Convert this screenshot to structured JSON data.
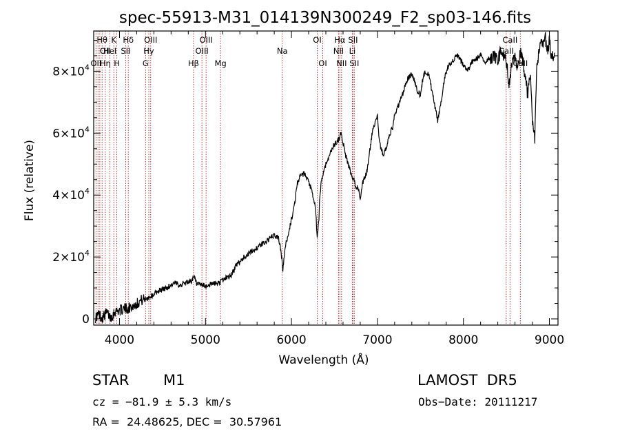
{
  "chart_data": {
    "type": "line",
    "title": "spec-55913-M31_014139N300249_F2_sp03-146.fits",
    "xlabel": "Wavelength (Å)",
    "ylabel": "Flux (relative)",
    "xlim": [
      3700,
      9100
    ],
    "ylim": [
      -2000,
      93000
    ],
    "xticks": [
      4000,
      5000,
      6000,
      7000,
      8000,
      9000
    ],
    "yticks": [
      {
        "value": 0,
        "base": "0",
        "exp": ""
      },
      {
        "value": 20000,
        "base": "2×10",
        "exp": "4"
      },
      {
        "value": 40000,
        "base": "4×10",
        "exp": "4"
      },
      {
        "value": 60000,
        "base": "6×10",
        "exp": "4"
      },
      {
        "value": 80000,
        "base": "8×10",
        "exp": "4"
      }
    ],
    "line_color": "#000000",
    "marker_color": "#b22222",
    "series": [
      {
        "x": [
          3720,
          3760,
          3800,
          3850,
          3900,
          3950,
          4000,
          4050,
          4100,
          4150,
          4200,
          4250,
          4300,
          4350,
          4400,
          4450,
          4500,
          4550,
          4600,
          4650,
          4700,
          4750,
          4800,
          4850,
          4870,
          4900,
          4950,
          5000,
          5050,
          5100,
          5150,
          5200,
          5250,
          5300,
          5350,
          5400,
          5450,
          5500,
          5550,
          5600,
          5650,
          5700,
          5750,
          5800,
          5850,
          5880,
          5900,
          5920,
          5950,
          6000,
          6030,
          6050,
          6070,
          6100,
          6150,
          6200,
          6230,
          6260,
          6280,
          6300,
          6320,
          6330,
          6350,
          6380,
          6400,
          6430,
          6460,
          6490,
          6520,
          6550,
          6570,
          6600,
          6630,
          6650,
          6680,
          6700,
          6720,
          6750,
          6780,
          6800,
          6830,
          6860,
          6880,
          6900,
          6920,
          6950,
          6980,
          7000,
          7020,
          7040,
          7070,
          7100,
          7130,
          7150,
          7180,
          7200,
          7230,
          7260,
          7280,
          7300,
          7330,
          7360,
          7400,
          7430,
          7460,
          7500,
          7530,
          7560,
          7600,
          7630,
          7660,
          7700,
          7720,
          7750,
          7770,
          7800,
          7830,
          7860,
          7900,
          7930,
          7960,
          8000,
          8050,
          8100,
          8150,
          8200,
          8250,
          8300,
          8350,
          8400,
          8430,
          8470,
          8500,
          8530,
          8560,
          8600,
          8630,
          8660,
          8690,
          8720,
          8750,
          8780,
          8800,
          8830,
          8850,
          8880,
          8900,
          8920,
          8950,
          8970,
          9000,
          9030,
          9060
        ],
        "y": [
          500,
          1500,
          300,
          2000,
          500,
          2500,
          2800,
          3200,
          3500,
          4000,
          5000,
          6000,
          6500,
          7000,
          8000,
          9000,
          9500,
          10000,
          11000,
          11500,
          11000,
          11500,
          12000,
          12500,
          13500,
          11000,
          11000,
          10500,
          11000,
          11500,
          11500,
          12500,
          13500,
          14000,
          17000,
          18500,
          20000,
          21000,
          22000,
          23000,
          24000,
          25000,
          26000,
          27000,
          26000,
          22000,
          15000,
          22000,
          26000,
          32000,
          36000,
          40000,
          44000,
          46000,
          47000,
          44000,
          42000,
          38000,
          36000,
          26000,
          32000,
          40000,
          45000,
          48000,
          50000,
          52000,
          54000,
          56000,
          57000,
          58000,
          60000,
          57000,
          53000,
          51000,
          48000,
          46000,
          45000,
          43000,
          42000,
          38000,
          44000,
          46000,
          48000,
          52000,
          56000,
          62000,
          64000,
          66000,
          58000,
          55000,
          53000,
          55000,
          58000,
          60000,
          62000,
          66000,
          68000,
          70000,
          72000,
          73000,
          76000,
          78000,
          79000,
          77000,
          74000,
          72000,
          78000,
          80000,
          79000,
          74000,
          70000,
          64000,
          67000,
          72000,
          76000,
          80000,
          82000,
          83000,
          84000,
          85000,
          84000,
          82000,
          80000,
          83000,
          84000,
          85000,
          83000,
          84000,
          85000,
          84000,
          86000,
          85000,
          83000,
          76000,
          82000,
          84000,
          80000,
          86000,
          84000,
          78000,
          72000,
          80000,
          64000,
          58000,
          80000,
          86000,
          90000,
          88000,
          92000,
          86000,
          90000,
          84000,
          86000
        ]
      }
    ],
    "lines": [
      {
        "x": 3727,
        "labels": [
          {
            "row": 3,
            "text": "OII"
          }
        ]
      },
      {
        "x": 3750,
        "labels": []
      },
      {
        "x": 3771,
        "labels": []
      },
      {
        "x": 3798,
        "labels": [
          {
            "row": 1,
            "text": "Hθ"
          }
        ]
      },
      {
        "x": 3835,
        "labels": [
          {
            "row": 2,
            "text": "OII"
          },
          {
            "row": 3,
            "text": "Hη"
          }
        ]
      },
      {
        "x": 3889,
        "labels": [
          {
            "row": 2,
            "text": "HeI"
          }
        ]
      },
      {
        "x": 3934,
        "labels": [
          {
            "row": 1,
            "text": "K"
          }
        ]
      },
      {
        "x": 3969,
        "labels": [
          {
            "row": 3,
            "text": "H"
          }
        ]
      },
      {
        "x": 4072,
        "labels": [
          {
            "row": 2,
            "text": "SII"
          }
        ]
      },
      {
        "x": 4102,
        "labels": [
          {
            "row": 1,
            "text": "Hδ"
          }
        ]
      },
      {
        "x": 4304,
        "labels": [
          {
            "row": 3,
            "text": "G"
          }
        ]
      },
      {
        "x": 4341,
        "labels": [
          {
            "row": 2,
            "text": "Hγ"
          }
        ]
      },
      {
        "x": 4363,
        "labels": [
          {
            "row": 1,
            "text": "OIII"
          }
        ]
      },
      {
        "x": 4861,
        "labels": [
          {
            "row": 3,
            "text": "Hβ"
          }
        ]
      },
      {
        "x": 4959,
        "labels": [
          {
            "row": 2,
            "text": "OIII"
          }
        ]
      },
      {
        "x": 5007,
        "labels": [
          {
            "row": 1,
            "text": "OIII"
          }
        ]
      },
      {
        "x": 5175,
        "labels": [
          {
            "row": 3,
            "text": "Mg"
          }
        ]
      },
      {
        "x": 5893,
        "labels": [
          {
            "row": 2,
            "text": "Na"
          }
        ]
      },
      {
        "x": 6300,
        "labels": [
          {
            "row": 1,
            "text": "OI"
          }
        ]
      },
      {
        "x": 6364,
        "labels": [
          {
            "row": 3,
            "text": "OI"
          }
        ]
      },
      {
        "x": 6548,
        "labels": [
          {
            "row": 2,
            "text": "NII"
          }
        ]
      },
      {
        "x": 6563,
        "labels": [
          {
            "row": 1,
            "text": "Hα"
          }
        ]
      },
      {
        "x": 6583,
        "labels": [
          {
            "row": 3,
            "text": "NII"
          }
        ]
      },
      {
        "x": 6708,
        "labels": [
          {
            "row": 2,
            "text": "Li"
          }
        ]
      },
      {
        "x": 6716,
        "labels": [
          {
            "row": 1,
            "text": "SII"
          }
        ]
      },
      {
        "x": 6731,
        "labels": [
          {
            "row": 3,
            "text": "SII"
          }
        ]
      },
      {
        "x": 8498,
        "labels": [
          {
            "row": 2,
            "text": "CaII"
          }
        ]
      },
      {
        "x": 8542,
        "labels": [
          {
            "row": 1,
            "text": "CaII"
          }
        ]
      },
      {
        "x": 8662,
        "labels": [
          {
            "row": 3,
            "text": "CaII"
          }
        ]
      }
    ]
  },
  "info": {
    "class": "STAR",
    "subclass": "M1",
    "cz": "cz = −81.9 ± 5.3 km/s",
    "coords": "RA =  24.48625, DEC =  30.57961",
    "survey": "LAMOST  DR5",
    "obsdate": "Obs−Date: 20111217"
  }
}
